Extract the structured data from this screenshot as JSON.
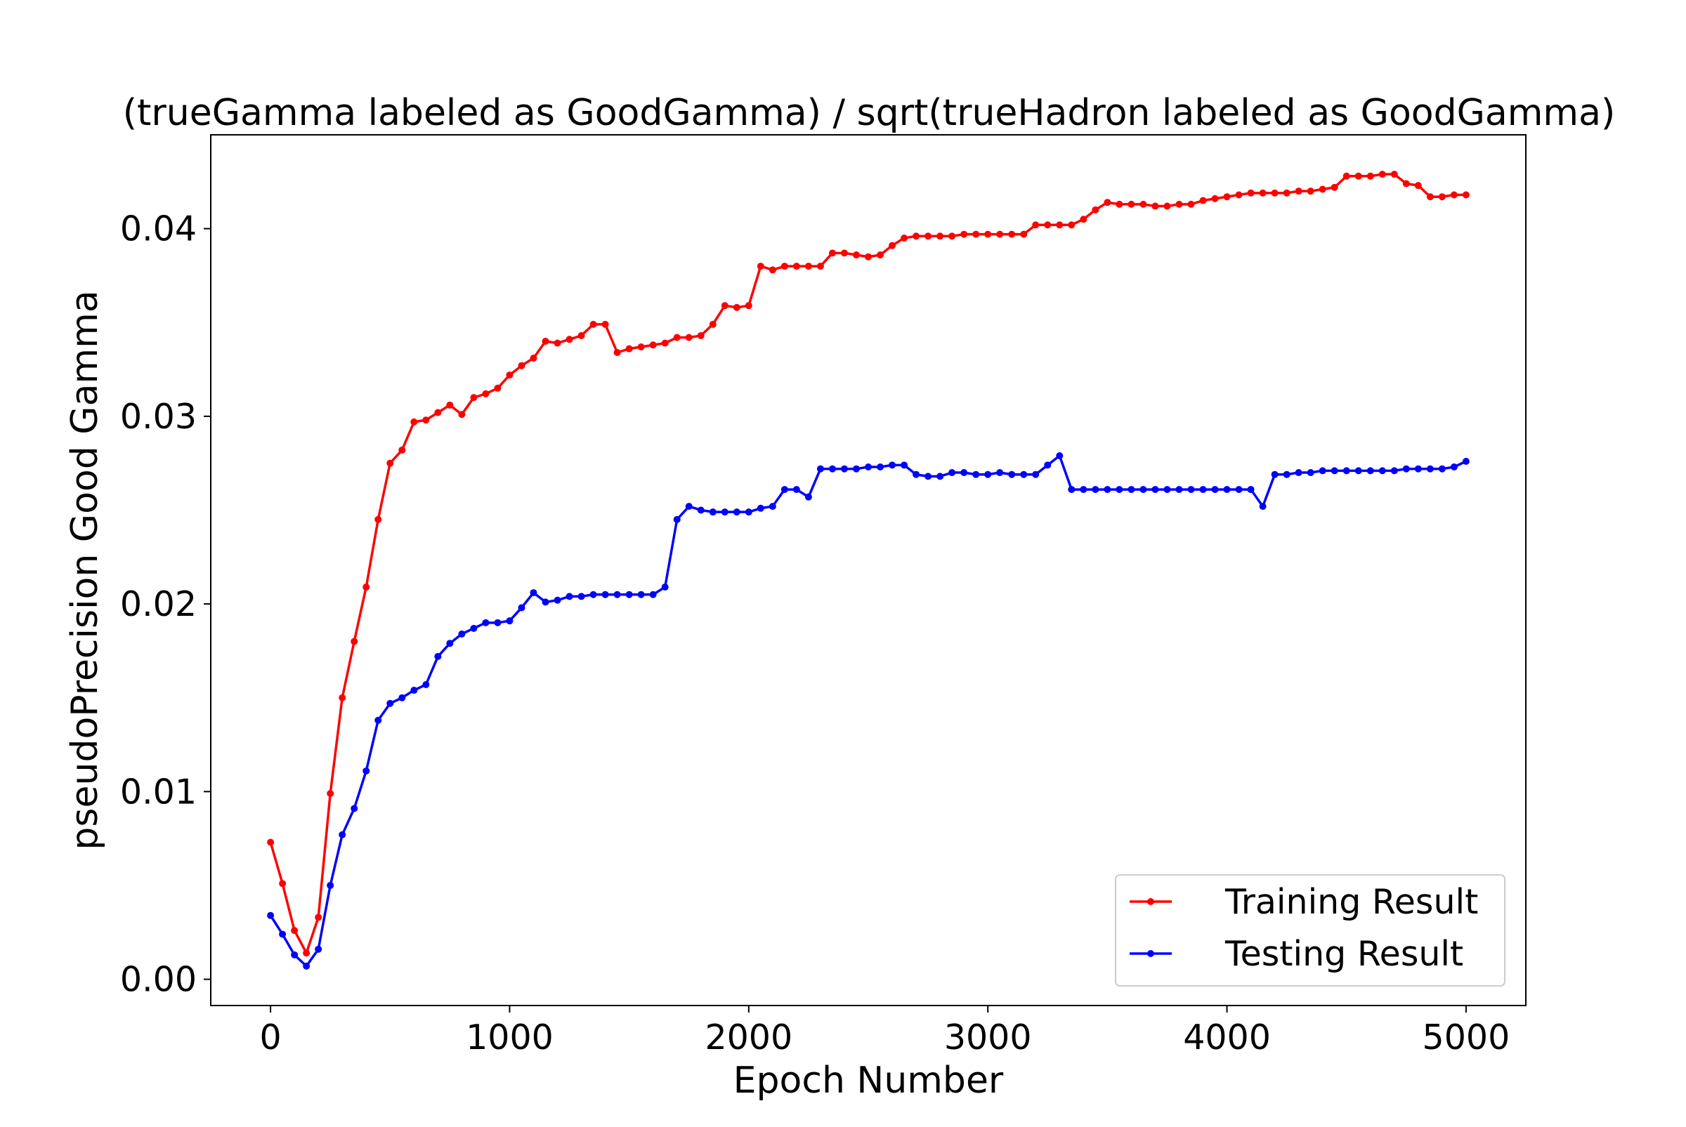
{
  "colors": {
    "training": "#ff0000",
    "testing": "#0000ff",
    "axis": "#000000",
    "background": "#ffffff"
  },
  "chart_data": {
    "type": "line",
    "title": "(trueGamma labeled as GoodGamma) / sqrt(trueHadron labeled as GoodGamma)",
    "xlabel": "Epoch Number",
    "ylabel": "pseudoPrecision Good Gamma",
    "xlim": [
      -250,
      5250
    ],
    "ylim": [
      -0.0014,
      0.045
    ],
    "xticks": [
      0,
      1000,
      2000,
      3000,
      4000,
      5000
    ],
    "xtick_labels": [
      "0",
      "1000",
      "2000",
      "3000",
      "4000",
      "5000"
    ],
    "yticks": [
      0.0,
      0.01,
      0.02,
      0.03,
      0.04
    ],
    "ytick_labels": [
      "0.00",
      "0.01",
      "0.02",
      "0.03",
      "0.04"
    ],
    "grid": false,
    "legend_position": "bottom-right",
    "x": [
      0,
      50,
      100,
      150,
      200,
      250,
      300,
      350,
      400,
      450,
      500,
      550,
      600,
      650,
      700,
      750,
      800,
      850,
      900,
      950,
      1000,
      1050,
      1100,
      1150,
      1200,
      1250,
      1300,
      1350,
      1400,
      1450,
      1500,
      1550,
      1600,
      1650,
      1700,
      1750,
      1800,
      1850,
      1900,
      1950,
      2000,
      2050,
      2100,
      2150,
      2200,
      2250,
      2300,
      2350,
      2400,
      2450,
      2500,
      2550,
      2600,
      2650,
      2700,
      2750,
      2800,
      2850,
      2900,
      2950,
      3000,
      3050,
      3100,
      3150,
      3200,
      3250,
      3300,
      3350,
      3400,
      3450,
      3500,
      3550,
      3600,
      3650,
      3700,
      3750,
      3800,
      3850,
      3900,
      3950,
      4000,
      4050,
      4100,
      4150,
      4200,
      4250,
      4300,
      4350,
      4400,
      4450,
      4500,
      4550,
      4600,
      4650,
      4700,
      4750,
      4800,
      4850,
      4900,
      4950,
      5000
    ],
    "series": [
      {
        "name": "Training Result",
        "color": "#ff0000",
        "values": [
          0.0073,
          0.0051,
          0.0026,
          0.0014,
          0.0033,
          0.0099,
          0.015,
          0.018,
          0.0209,
          0.0245,
          0.0275,
          0.0282,
          0.0297,
          0.0298,
          0.0302,
          0.0306,
          0.0301,
          0.031,
          0.0312,
          0.0315,
          0.0322,
          0.0327,
          0.0331,
          0.034,
          0.0339,
          0.0341,
          0.0343,
          0.0349,
          0.0349,
          0.0334,
          0.0336,
          0.0337,
          0.0338,
          0.0339,
          0.0342,
          0.0342,
          0.0343,
          0.0349,
          0.0359,
          0.0358,
          0.0359,
          0.038,
          0.0378,
          0.038,
          0.038,
          0.038,
          0.038,
          0.0387,
          0.0387,
          0.0386,
          0.0385,
          0.0386,
          0.0391,
          0.0395,
          0.0396,
          0.0396,
          0.0396,
          0.0396,
          0.0397,
          0.0397,
          0.0397,
          0.0397,
          0.0397,
          0.0397,
          0.0402,
          0.0402,
          0.0402,
          0.0402,
          0.0405,
          0.041,
          0.0414,
          0.0413,
          0.0413,
          0.0413,
          0.0412,
          0.0412,
          0.0413,
          0.0413,
          0.0415,
          0.0416,
          0.0417,
          0.0418,
          0.0419,
          0.0419,
          0.0419,
          0.0419,
          0.042,
          0.042,
          0.0421,
          0.0422,
          0.0428,
          0.0428,
          0.0428,
          0.0429,
          0.0429,
          0.0424,
          0.0423,
          0.0417,
          0.0417,
          0.0418,
          0.0418
        ]
      },
      {
        "name": "Testing Result",
        "color": "#0000ff",
        "values": [
          0.0034,
          0.0024,
          0.0013,
          0.0007,
          0.0016,
          0.005,
          0.0077,
          0.0091,
          0.0111,
          0.0138,
          0.0147,
          0.015,
          0.0154,
          0.0157,
          0.0172,
          0.0179,
          0.0184,
          0.0187,
          0.019,
          0.019,
          0.0191,
          0.0198,
          0.0206,
          0.0201,
          0.0202,
          0.0204,
          0.0204,
          0.0205,
          0.0205,
          0.0205,
          0.0205,
          0.0205,
          0.0205,
          0.0209,
          0.0245,
          0.0252,
          0.025,
          0.0249,
          0.0249,
          0.0249,
          0.0249,
          0.0251,
          0.0252,
          0.0261,
          0.0261,
          0.0257,
          0.0272,
          0.0272,
          0.0272,
          0.0272,
          0.0273,
          0.0273,
          0.0274,
          0.0274,
          0.0269,
          0.0268,
          0.0268,
          0.027,
          0.027,
          0.0269,
          0.0269,
          0.027,
          0.0269,
          0.0269,
          0.0269,
          0.0274,
          0.0279,
          0.0261,
          0.0261,
          0.0261,
          0.0261,
          0.0261,
          0.0261,
          0.0261,
          0.0261,
          0.0261,
          0.0261,
          0.0261,
          0.0261,
          0.0261,
          0.0261,
          0.0261,
          0.0261,
          0.0252,
          0.0269,
          0.0269,
          0.027,
          0.027,
          0.0271,
          0.0271,
          0.0271,
          0.0271,
          0.0271,
          0.0271,
          0.0271,
          0.0272,
          0.0272,
          0.0272,
          0.0272,
          0.0273,
          0.0276
        ]
      }
    ]
  }
}
